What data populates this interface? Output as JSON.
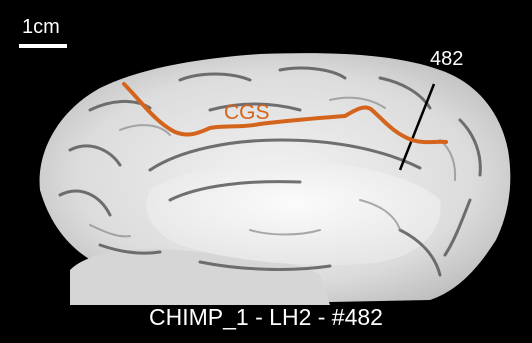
{
  "scale_bar": {
    "label": "1cm"
  },
  "slice_marker": {
    "label": "482"
  },
  "sulcus": {
    "label": "CGS",
    "color": "#d4641c"
  },
  "caption": "CHIMP_1 - LH2 - #482"
}
